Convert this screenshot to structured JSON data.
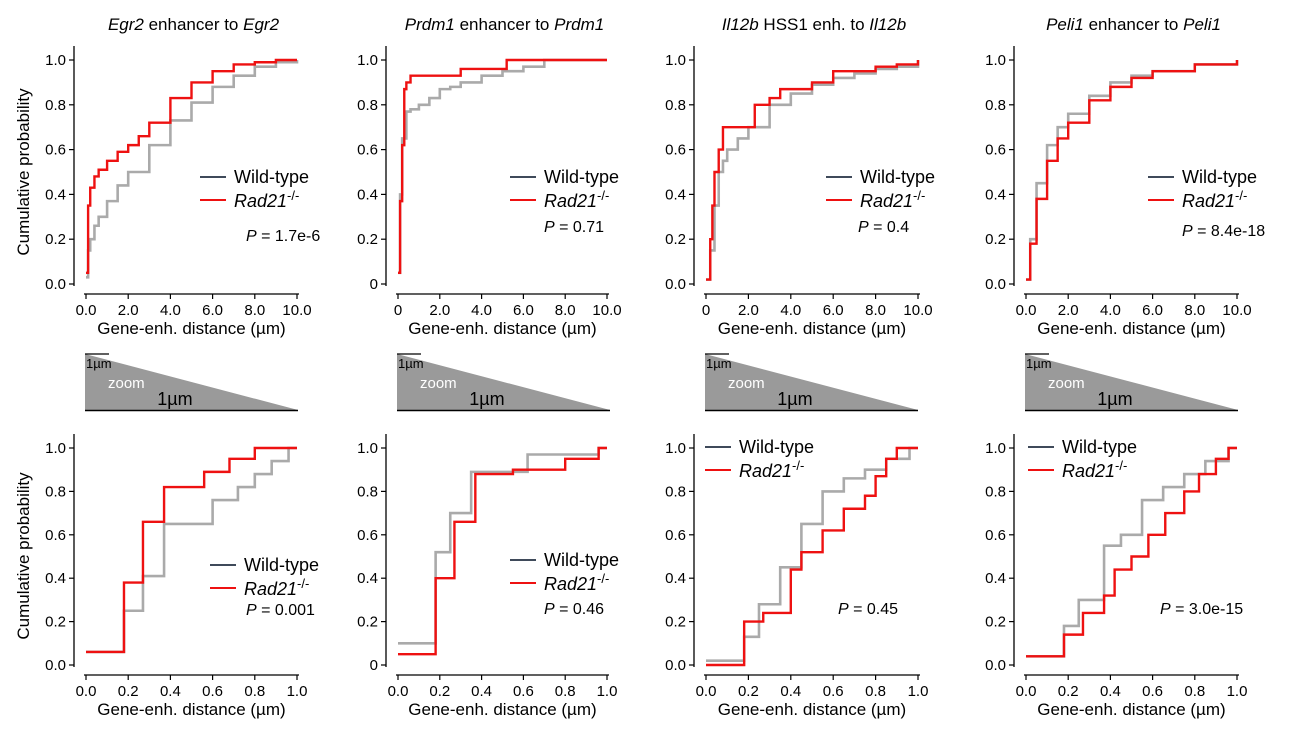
{
  "labels": {
    "y_axis": "Cumulative  probability",
    "x_axis_um": "Gene-enh. distance (µm)",
    "legend_wt": "Wild-type",
    "legend_rad": "Rad21",
    "legend_rad_sup": "-/-",
    "p_prefix": "P",
    "zoom_small": "1µm",
    "zoom_word": "zoom",
    "zoom_big": "1µm"
  },
  "colors": {
    "wild_type": "#aaaaaa",
    "rad21": "#ee1111",
    "legend_wt_line": "#3f4a5a",
    "zoom_fill": "#9a9a9a"
  },
  "chart_data": [
    {
      "type": "line",
      "title_parts": [
        {
          "t": "Egr2",
          "i": true
        },
        {
          "t": " enhancer to ",
          "i": false
        },
        {
          "t": "Egr2",
          "i": true
        }
      ],
      "xlim": [
        0,
        10
      ],
      "ylim": [
        0,
        1
      ],
      "xticks": [
        "0.0",
        "2.0",
        "4.0",
        "6.0",
        "8.0",
        "10.0"
      ],
      "yticks": [
        "0.0",
        "0.2",
        "0.4",
        "0.6",
        "0.8",
        "1.0"
      ],
      "pvalue": "1.7e-6",
      "series": [
        {
          "name": "Wild-type",
          "x": [
            0,
            0.1,
            0.2,
            0.4,
            0.6,
            1,
            1.5,
            2,
            3,
            4,
            5,
            6,
            7,
            8,
            9,
            10
          ],
          "y": [
            0.03,
            0.15,
            0.2,
            0.26,
            0.3,
            0.37,
            0.44,
            0.5,
            0.62,
            0.73,
            0.81,
            0.88,
            0.93,
            0.97,
            0.99,
            1.0
          ]
        },
        {
          "name": "Rad21-/-",
          "x": [
            0,
            0.1,
            0.2,
            0.4,
            0.6,
            1,
            1.5,
            2,
            2.5,
            3,
            4,
            5,
            6,
            7,
            8,
            9
          ],
          "y": [
            0.05,
            0.35,
            0.43,
            0.48,
            0.51,
            0.55,
            0.59,
            0.62,
            0.66,
            0.72,
            0.83,
            0.9,
            0.95,
            0.98,
            0.99,
            1.0
          ]
        }
      ]
    },
    {
      "type": "line",
      "title_parts": [
        {
          "t": "Prdm1",
          "i": true
        },
        {
          "t": " enhancer to ",
          "i": false
        },
        {
          "t": "Prdm1",
          "i": true
        }
      ],
      "xlim": [
        0,
        10
      ],
      "ylim": [
        0,
        1
      ],
      "xticks": [
        "0",
        "2.0",
        "4.0",
        "6.0",
        "8.0",
        "10.0"
      ],
      "yticks": [
        "0",
        "0.2",
        "0.4",
        "0.6",
        "0.8",
        "1.0"
      ],
      "pvalue": "0.71",
      "series": [
        {
          "name": "Wild-type",
          "x": [
            0,
            0.1,
            0.2,
            0.4,
            0.6,
            1,
            1.5,
            2,
            2.5,
            3,
            4,
            5,
            6,
            7,
            10
          ],
          "y": [
            0.05,
            0.4,
            0.65,
            0.77,
            0.78,
            0.8,
            0.83,
            0.87,
            0.88,
            0.9,
            0.93,
            0.95,
            0.97,
            1.0,
            1.0
          ]
        },
        {
          "name": "Rad21-/-",
          "x": [
            0,
            0.1,
            0.2,
            0.3,
            0.4,
            0.6,
            1,
            3,
            5.2,
            10
          ],
          "y": [
            0.05,
            0.37,
            0.62,
            0.87,
            0.9,
            0.93,
            0.93,
            0.96,
            1.0,
            1.0
          ]
        }
      ]
    },
    {
      "type": "line",
      "title_parts": [
        {
          "t": "Il12b",
          "i": true
        },
        {
          "t": " HSS1 enh. to ",
          "i": false
        },
        {
          "t": "Il12b",
          "i": true
        }
      ],
      "xlim": [
        0,
        10
      ],
      "ylim": [
        0,
        1
      ],
      "xticks": [
        "0",
        "2.0",
        "4.0",
        "6.0",
        "8.0",
        "10.0"
      ],
      "yticks": [
        "0.0",
        "0.2",
        "0.4",
        "0.6",
        "0.8",
        "1.0"
      ],
      "pvalue": "0.4",
      "series": [
        {
          "name": "Wild-type",
          "x": [
            0,
            0.2,
            0.4,
            0.6,
            0.8,
            1,
            1.5,
            2,
            3,
            4,
            5,
            6,
            7,
            8,
            9,
            10
          ],
          "y": [
            0.02,
            0.15,
            0.35,
            0.5,
            0.55,
            0.6,
            0.65,
            0.7,
            0.8,
            0.85,
            0.89,
            0.92,
            0.94,
            0.96,
            0.97,
            1.0
          ]
        },
        {
          "name": "Rad21-/-",
          "x": [
            0,
            0.2,
            0.3,
            0.4,
            0.6,
            0.8,
            2,
            2.3,
            3,
            3.5,
            4,
            5,
            6,
            8,
            9,
            10
          ],
          "y": [
            0.02,
            0.2,
            0.35,
            0.5,
            0.6,
            0.7,
            0.7,
            0.8,
            0.83,
            0.87,
            0.87,
            0.9,
            0.95,
            0.97,
            0.98,
            1.0
          ]
        }
      ]
    },
    {
      "type": "line",
      "title_parts": [
        {
          "t": "Peli1",
          "i": true
        },
        {
          "t": " enhancer to ",
          "i": false
        },
        {
          "t": "Peli1",
          "i": true
        }
      ],
      "xlim": [
        0,
        10
      ],
      "ylim": [
        0,
        1
      ],
      "xticks": [
        "0.0",
        "2.0",
        "4.0",
        "6.0",
        "8.0",
        "10.0"
      ],
      "yticks": [
        "0.0",
        "0.2",
        "0.4",
        "0.6",
        "0.8",
        "1.0"
      ],
      "pvalue": "8.4e-18",
      "series": [
        {
          "name": "Wild-type",
          "x": [
            0,
            0.2,
            0.5,
            1,
            1.5,
            2,
            3,
            4,
            5,
            6,
            8,
            10
          ],
          "y": [
            0.02,
            0.2,
            0.45,
            0.62,
            0.7,
            0.76,
            0.84,
            0.9,
            0.93,
            0.95,
            0.98,
            1.0
          ]
        },
        {
          "name": "Rad21-/-",
          "x": [
            0,
            0.2,
            0.5,
            1,
            1.5,
            2,
            3,
            4,
            5,
            6,
            8,
            10
          ],
          "y": [
            0.02,
            0.18,
            0.38,
            0.55,
            0.65,
            0.72,
            0.82,
            0.88,
            0.92,
            0.95,
            0.98,
            1.0
          ]
        }
      ]
    },
    {
      "type": "line",
      "title_parts": [],
      "xlim": [
        0,
        1
      ],
      "ylim": [
        0,
        1
      ],
      "xticks": [
        "0.0",
        "0.2",
        "0.4",
        "0.6",
        "0.8",
        "1.0"
      ],
      "yticks": [
        "0.0",
        "0.2",
        "0.4",
        "0.6",
        "0.8",
        "1.0"
      ],
      "pvalue": "0.001",
      "series": [
        {
          "name": "Wild-type",
          "x": [
            0,
            0.18,
            0.27,
            0.37,
            0.45,
            0.6,
            0.72,
            0.8,
            0.88,
            0.96
          ],
          "y": [
            0.06,
            0.25,
            0.41,
            0.65,
            0.65,
            0.76,
            0.82,
            0.88,
            0.94,
            1.0
          ]
        },
        {
          "name": "Rad21-/-",
          "x": [
            0,
            0.18,
            0.27,
            0.37,
            0.43,
            0.56,
            0.68,
            0.8,
            0.96
          ],
          "y": [
            0.06,
            0.38,
            0.66,
            0.82,
            0.82,
            0.89,
            0.95,
            1.0,
            1.0
          ]
        }
      ]
    },
    {
      "type": "line",
      "title_parts": [],
      "xlim": [
        0,
        1
      ],
      "ylim": [
        0,
        1
      ],
      "xticks": [
        "0.0",
        "0.2",
        "0.4",
        "0.6",
        "0.8",
        "1.0"
      ],
      "yticks": [
        "0",
        "0.2",
        "0.4",
        "0.6",
        "0.8",
        "1.0"
      ],
      "pvalue": "0.46",
      "series": [
        {
          "name": "Wild-type",
          "x": [
            0,
            0.18,
            0.25,
            0.35,
            0.55,
            0.62,
            0.78,
            0.96
          ],
          "y": [
            0.1,
            0.52,
            0.7,
            0.89,
            0.89,
            0.97,
            0.97,
            1.0
          ]
        },
        {
          "name": "Rad21-/-",
          "x": [
            0,
            0.18,
            0.27,
            0.37,
            0.55,
            0.8,
            0.96
          ],
          "y": [
            0.05,
            0.4,
            0.66,
            0.88,
            0.9,
            0.95,
            1.0
          ]
        }
      ]
    },
    {
      "type": "line",
      "title_parts": [],
      "xlim": [
        0,
        1
      ],
      "ylim": [
        0,
        1
      ],
      "xticks": [
        "0.0",
        "0.2",
        "0.4",
        "0.6",
        "0.8",
        "1.0"
      ],
      "yticks": [
        "0.0",
        "0.2",
        "0.4",
        "0.6",
        "0.8",
        "1.0"
      ],
      "pvalue": "0.45",
      "series": [
        {
          "name": "Wild-type",
          "x": [
            0,
            0.18,
            0.25,
            0.35,
            0.45,
            0.55,
            0.65,
            0.75,
            0.85,
            0.96
          ],
          "y": [
            0.02,
            0.13,
            0.28,
            0.45,
            0.65,
            0.8,
            0.86,
            0.9,
            0.95,
            1.0
          ]
        },
        {
          "name": "Rad21-/-",
          "x": [
            0,
            0.18,
            0.27,
            0.35,
            0.4,
            0.45,
            0.55,
            0.65,
            0.75,
            0.8,
            0.85,
            0.9
          ],
          "y": [
            0.0,
            0.2,
            0.24,
            0.24,
            0.44,
            0.52,
            0.62,
            0.72,
            0.78,
            0.87,
            0.95,
            1.0
          ]
        }
      ]
    },
    {
      "type": "line",
      "title_parts": [],
      "xlim": [
        0,
        1
      ],
      "ylim": [
        0,
        1
      ],
      "xticks": [
        "0.0",
        "0.2",
        "0.4",
        "0.6",
        "0.8",
        "1.0"
      ],
      "yticks": [
        "0.0",
        "0.2",
        "0.4",
        "0.6",
        "0.8",
        "1.0"
      ],
      "pvalue": "3.0e-15",
      "series": [
        {
          "name": "Wild-type",
          "x": [
            0,
            0.18,
            0.25,
            0.37,
            0.45,
            0.55,
            0.65,
            0.75,
            0.85,
            0.96
          ],
          "y": [
            0.04,
            0.18,
            0.3,
            0.55,
            0.6,
            0.76,
            0.82,
            0.88,
            0.94,
            1.0
          ]
        },
        {
          "name": "Rad21-/-",
          "x": [
            0,
            0.18,
            0.27,
            0.37,
            0.42,
            0.5,
            0.58,
            0.66,
            0.75,
            0.82,
            0.9,
            0.96
          ],
          "y": [
            0.04,
            0.14,
            0.24,
            0.32,
            0.44,
            0.5,
            0.6,
            0.7,
            0.8,
            0.88,
            0.95,
            1.0
          ]
        }
      ]
    }
  ]
}
